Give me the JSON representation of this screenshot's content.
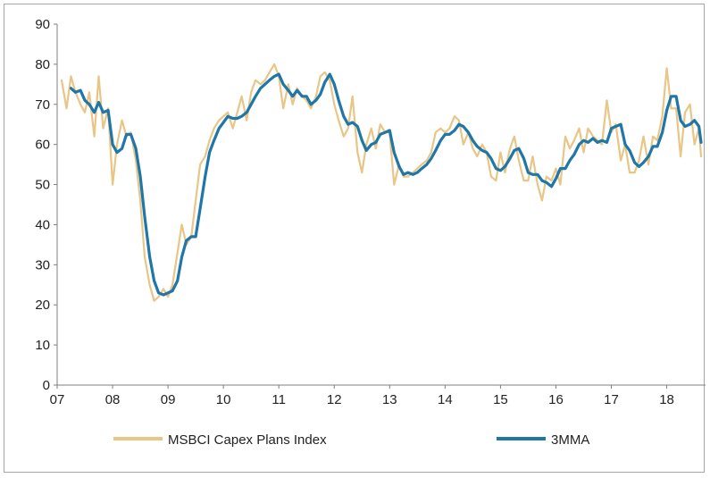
{
  "colors": {
    "index": "#E9C586",
    "mma": "#1F77A8",
    "axis": "#7f7f7f",
    "text": "#222222"
  },
  "chart_data": {
    "type": "line",
    "title": "",
    "xlabel": "",
    "ylabel": "",
    "xlim": [
      2007.0,
      2018.7
    ],
    "ylim": [
      0,
      90
    ],
    "y_ticks": [
      0,
      10,
      20,
      30,
      40,
      50,
      60,
      70,
      80,
      90
    ],
    "x_ticks": [
      {
        "value": 2007,
        "label": "07"
      },
      {
        "value": 2008,
        "label": "08"
      },
      {
        "value": 2009,
        "label": "09"
      },
      {
        "value": 2010,
        "label": "10"
      },
      {
        "value": 2011,
        "label": "11"
      },
      {
        "value": 2012,
        "label": "12"
      },
      {
        "value": 2013,
        "label": "13"
      },
      {
        "value": 2014,
        "label": "14"
      },
      {
        "value": 2015,
        "label": "15"
      },
      {
        "value": 2016,
        "label": "16"
      },
      {
        "value": 2017,
        "label": "17"
      },
      {
        "value": 2018,
        "label": "18"
      }
    ],
    "legend_position": "bottom",
    "series": [
      {
        "name": "MSBCI Capex Plans Index",
        "color_key": "index",
        "points": [
          [
            2007.08,
            76
          ],
          [
            2007.17,
            69
          ],
          [
            2007.25,
            77
          ],
          [
            2007.33,
            73
          ],
          [
            2007.42,
            70
          ],
          [
            2007.5,
            68
          ],
          [
            2007.58,
            73
          ],
          [
            2007.67,
            62
          ],
          [
            2007.75,
            77
          ],
          [
            2007.83,
            64
          ],
          [
            2007.92,
            69
          ],
          [
            2008.0,
            50
          ],
          [
            2008.08,
            60
          ],
          [
            2008.17,
            66
          ],
          [
            2008.25,
            62
          ],
          [
            2008.33,
            63
          ],
          [
            2008.42,
            56
          ],
          [
            2008.5,
            46
          ],
          [
            2008.58,
            32
          ],
          [
            2008.67,
            25
          ],
          [
            2008.75,
            21
          ],
          [
            2008.83,
            22
          ],
          [
            2008.92,
            24
          ],
          [
            2009.0,
            22
          ],
          [
            2009.08,
            25
          ],
          [
            2009.17,
            33
          ],
          [
            2009.25,
            40
          ],
          [
            2009.33,
            35
          ],
          [
            2009.42,
            37
          ],
          [
            2009.5,
            46
          ],
          [
            2009.58,
            55
          ],
          [
            2009.67,
            57
          ],
          [
            2009.75,
            61
          ],
          [
            2009.83,
            64
          ],
          [
            2009.92,
            66
          ],
          [
            2010.0,
            67
          ],
          [
            2010.08,
            68
          ],
          [
            2010.17,
            64
          ],
          [
            2010.25,
            68
          ],
          [
            2010.33,
            72
          ],
          [
            2010.42,
            66
          ],
          [
            2010.5,
            73
          ],
          [
            2010.58,
            76
          ],
          [
            2010.67,
            75
          ],
          [
            2010.75,
            76
          ],
          [
            2010.83,
            78
          ],
          [
            2010.92,
            80
          ],
          [
            2011.0,
            77
          ],
          [
            2011.08,
            69
          ],
          [
            2011.17,
            75
          ],
          [
            2011.25,
            70
          ],
          [
            2011.33,
            74
          ],
          [
            2011.42,
            72
          ],
          [
            2011.5,
            71
          ],
          [
            2011.58,
            69
          ],
          [
            2011.67,
            72
          ],
          [
            2011.75,
            77
          ],
          [
            2011.83,
            78
          ],
          [
            2011.92,
            76
          ],
          [
            2012.0,
            70
          ],
          [
            2012.08,
            66
          ],
          [
            2012.17,
            62
          ],
          [
            2012.25,
            64
          ],
          [
            2012.33,
            72
          ],
          [
            2012.42,
            58
          ],
          [
            2012.5,
            53
          ],
          [
            2012.58,
            60
          ],
          [
            2012.67,
            64
          ],
          [
            2012.75,
            59
          ],
          [
            2012.83,
            65
          ],
          [
            2012.92,
            63
          ],
          [
            2013.0,
            63
          ],
          [
            2013.08,
            50
          ],
          [
            2013.17,
            55
          ],
          [
            2013.25,
            52
          ],
          [
            2013.33,
            52
          ],
          [
            2013.42,
            53
          ],
          [
            2013.5,
            54
          ],
          [
            2013.58,
            55
          ],
          [
            2013.67,
            56
          ],
          [
            2013.75,
            58
          ],
          [
            2013.83,
            63
          ],
          [
            2013.92,
            64
          ],
          [
            2014.0,
            63
          ],
          [
            2014.08,
            64
          ],
          [
            2014.17,
            67
          ],
          [
            2014.25,
            66
          ],
          [
            2014.33,
            60
          ],
          [
            2014.42,
            63
          ],
          [
            2014.5,
            59
          ],
          [
            2014.58,
            57
          ],
          [
            2014.67,
            60
          ],
          [
            2014.75,
            58
          ],
          [
            2014.83,
            52
          ],
          [
            2014.92,
            51
          ],
          [
            2015.0,
            58
          ],
          [
            2015.08,
            53
          ],
          [
            2015.17,
            59
          ],
          [
            2015.25,
            62
          ],
          [
            2015.33,
            56
          ],
          [
            2015.42,
            51
          ],
          [
            2015.5,
            51
          ],
          [
            2015.58,
            57
          ],
          [
            2015.67,
            50
          ],
          [
            2015.75,
            46
          ],
          [
            2015.83,
            52
          ],
          [
            2015.92,
            51
          ],
          [
            2016.0,
            54
          ],
          [
            2016.08,
            50
          ],
          [
            2016.17,
            62
          ],
          [
            2016.25,
            59
          ],
          [
            2016.33,
            61
          ],
          [
            2016.42,
            64
          ],
          [
            2016.5,
            58
          ],
          [
            2016.58,
            64
          ],
          [
            2016.67,
            62
          ],
          [
            2016.75,
            61
          ],
          [
            2016.83,
            60
          ],
          [
            2016.92,
            71
          ],
          [
            2017.0,
            63
          ],
          [
            2017.08,
            65
          ],
          [
            2017.17,
            56
          ],
          [
            2017.25,
            60
          ],
          [
            2017.33,
            53
          ],
          [
            2017.42,
            53
          ],
          [
            2017.5,
            56
          ],
          [
            2017.58,
            62
          ],
          [
            2017.67,
            55
          ],
          [
            2017.75,
            62
          ],
          [
            2017.83,
            61
          ],
          [
            2017.92,
            67
          ],
          [
            2018.0,
            79
          ],
          [
            2018.08,
            69
          ],
          [
            2018.17,
            69
          ],
          [
            2018.25,
            57
          ],
          [
            2018.33,
            68
          ],
          [
            2018.42,
            70
          ],
          [
            2018.5,
            60
          ],
          [
            2018.58,
            64
          ],
          [
            2018.62,
            57
          ]
        ]
      },
      {
        "name": "3MMA",
        "color_key": "mma",
        "points": [
          [
            2007.25,
            74
          ],
          [
            2007.33,
            73
          ],
          [
            2007.42,
            73.5
          ],
          [
            2007.5,
            71
          ],
          [
            2007.58,
            70
          ],
          [
            2007.67,
            68
          ],
          [
            2007.75,
            70.5
          ],
          [
            2007.83,
            68
          ],
          [
            2007.92,
            68.5
          ],
          [
            2008.0,
            60
          ],
          [
            2008.08,
            58
          ],
          [
            2008.17,
            59
          ],
          [
            2008.25,
            62.5
          ],
          [
            2008.33,
            62.5
          ],
          [
            2008.42,
            59
          ],
          [
            2008.5,
            52
          ],
          [
            2008.58,
            42
          ],
          [
            2008.67,
            32
          ],
          [
            2008.75,
            26
          ],
          [
            2008.83,
            23
          ],
          [
            2008.92,
            22.5
          ],
          [
            2009.0,
            23
          ],
          [
            2009.08,
            23.5
          ],
          [
            2009.17,
            26
          ],
          [
            2009.25,
            32
          ],
          [
            2009.33,
            36
          ],
          [
            2009.42,
            37
          ],
          [
            2009.5,
            37
          ],
          [
            2009.58,
            44
          ],
          [
            2009.67,
            52
          ],
          [
            2009.75,
            58
          ],
          [
            2009.83,
            61
          ],
          [
            2009.92,
            64
          ],
          [
            2010.0,
            65.5
          ],
          [
            2010.08,
            67
          ],
          [
            2010.17,
            66.5
          ],
          [
            2010.25,
            66.5
          ],
          [
            2010.33,
            67
          ],
          [
            2010.42,
            68
          ],
          [
            2010.5,
            70
          ],
          [
            2010.58,
            72
          ],
          [
            2010.67,
            74
          ],
          [
            2010.75,
            75
          ],
          [
            2010.83,
            76
          ],
          [
            2010.92,
            77
          ],
          [
            2011.0,
            77.5
          ],
          [
            2011.08,
            75
          ],
          [
            2011.17,
            73.5
          ],
          [
            2011.25,
            72
          ],
          [
            2011.33,
            73.5
          ],
          [
            2011.42,
            72
          ],
          [
            2011.5,
            72
          ],
          [
            2011.58,
            70
          ],
          [
            2011.67,
            71
          ],
          [
            2011.75,
            72.5
          ],
          [
            2011.83,
            75.5
          ],
          [
            2011.92,
            77.5
          ],
          [
            2012.0,
            75
          ],
          [
            2012.08,
            71
          ],
          [
            2012.17,
            67
          ],
          [
            2012.25,
            65
          ],
          [
            2012.33,
            65.5
          ],
          [
            2012.42,
            64.5
          ],
          [
            2012.5,
            61
          ],
          [
            2012.58,
            58.5
          ],
          [
            2012.67,
            60
          ],
          [
            2012.75,
            60.5
          ],
          [
            2012.83,
            62.5
          ],
          [
            2012.92,
            63
          ],
          [
            2013.0,
            63.5
          ],
          [
            2013.08,
            58
          ],
          [
            2013.17,
            54.5
          ],
          [
            2013.25,
            52.5
          ],
          [
            2013.33,
            53
          ],
          [
            2013.42,
            52.5
          ],
          [
            2013.5,
            53
          ],
          [
            2013.58,
            54
          ],
          [
            2013.67,
            55
          ],
          [
            2013.75,
            56.5
          ],
          [
            2013.83,
            58.5
          ],
          [
            2013.92,
            61
          ],
          [
            2014.0,
            62.5
          ],
          [
            2014.08,
            62.5
          ],
          [
            2014.17,
            63.5
          ],
          [
            2014.25,
            65
          ],
          [
            2014.33,
            64.5
          ],
          [
            2014.42,
            63
          ],
          [
            2014.5,
            61
          ],
          [
            2014.58,
            59.5
          ],
          [
            2014.67,
            58.5
          ],
          [
            2014.75,
            58
          ],
          [
            2014.83,
            56.5
          ],
          [
            2014.92,
            54
          ],
          [
            2015.0,
            53.5
          ],
          [
            2015.08,
            54.5
          ],
          [
            2015.17,
            56.5
          ],
          [
            2015.25,
            58.5
          ],
          [
            2015.33,
            59
          ],
          [
            2015.42,
            56.5
          ],
          [
            2015.5,
            53
          ],
          [
            2015.58,
            52.5
          ],
          [
            2015.67,
            52.5
          ],
          [
            2015.75,
            51
          ],
          [
            2015.83,
            50.5
          ],
          [
            2015.92,
            49.5
          ],
          [
            2016.0,
            51.5
          ],
          [
            2016.08,
            54
          ],
          [
            2016.17,
            54
          ],
          [
            2016.25,
            56
          ],
          [
            2016.33,
            57.5
          ],
          [
            2016.42,
            60
          ],
          [
            2016.5,
            61
          ],
          [
            2016.58,
            60.5
          ],
          [
            2016.67,
            61.5
          ],
          [
            2016.75,
            60.5
          ],
          [
            2016.83,
            61
          ],
          [
            2016.92,
            60.5
          ],
          [
            2017.0,
            64
          ],
          [
            2017.08,
            64.5
          ],
          [
            2017.17,
            65
          ],
          [
            2017.25,
            60
          ],
          [
            2017.33,
            58.5
          ],
          [
            2017.42,
            55.5
          ],
          [
            2017.5,
            54.5
          ],
          [
            2017.58,
            55.5
          ],
          [
            2017.67,
            57
          ],
          [
            2017.75,
            59.5
          ],
          [
            2017.83,
            59.5
          ],
          [
            2017.92,
            63
          ],
          [
            2018.0,
            68.5
          ],
          [
            2018.08,
            72
          ],
          [
            2018.17,
            72
          ],
          [
            2018.25,
            66
          ],
          [
            2018.33,
            64.5
          ],
          [
            2018.42,
            65
          ],
          [
            2018.5,
            66
          ],
          [
            2018.58,
            64.5
          ],
          [
            2018.62,
            60.5
          ]
        ]
      }
    ]
  }
}
